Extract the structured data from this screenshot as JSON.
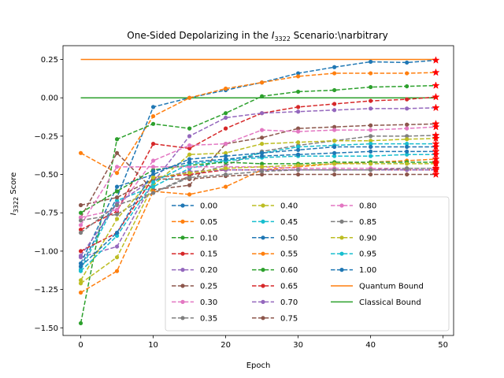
{
  "chart_data": {
    "type": "line",
    "title": "One-Sided Depolarizing in the I₃₃₂₂ Scenario:\\narbitrary",
    "title_prefix": "One-Sided Depolarizing in the ",
    "title_symbol": "I",
    "title_subscript": "3322",
    "title_suffix": " Scenario:\\narbitrary",
    "xlabel": "Epoch",
    "ylabel": "I₃₃₂₂ Score",
    "ylabel_symbol": "I",
    "ylabel_subscript": "3322",
    "ylabel_suffix": " Score",
    "xlim": [
      -2.45,
      51.45
    ],
    "ylim": [
      -1.55,
      0.34
    ],
    "xticks": [
      0,
      10,
      20,
      30,
      40,
      50
    ],
    "xtick_labels": [
      "0",
      "10",
      "20",
      "30",
      "40",
      "50"
    ],
    "yticks": [
      -1.5,
      -1.25,
      -1.0,
      -0.75,
      -0.5,
      -0.25,
      0.0,
      0.25
    ],
    "ytick_labels": [
      "−1.50",
      "−1.25",
      "−1.00",
      "−0.75",
      "−0.50",
      "−0.25",
      "0.00",
      "0.25"
    ],
    "grid": false,
    "legend_position": "lower-right",
    "legend_columns": 3,
    "final_marker": "star",
    "x": [
      0,
      5,
      10,
      15,
      20,
      25,
      30,
      35,
      40,
      45,
      49
    ],
    "series": [
      {
        "name": "0.00",
        "color": "#1f77b4",
        "values": [
          -1.1,
          -0.65,
          -0.06,
          0.0,
          0.05,
          0.1,
          0.16,
          0.2,
          0.235,
          0.23,
          0.245
        ]
      },
      {
        "name": "0.05",
        "color": "#ff7f0e",
        "values": [
          -0.36,
          -0.49,
          -0.12,
          0.0,
          0.06,
          0.1,
          0.14,
          0.16,
          0.16,
          0.16,
          0.165
        ]
      },
      {
        "name": "0.10",
        "color": "#2ca02c",
        "values": [
          -1.47,
          -0.27,
          -0.17,
          -0.2,
          -0.1,
          0.01,
          0.04,
          0.05,
          0.07,
          0.075,
          0.08
        ]
      },
      {
        "name": "0.15",
        "color": "#d62728",
        "values": [
          -0.86,
          -0.74,
          -0.3,
          -0.33,
          -0.2,
          -0.1,
          -0.06,
          -0.04,
          -0.02,
          -0.01,
          0.005
        ]
      },
      {
        "name": "0.20",
        "color": "#9467bd",
        "values": [
          -1.04,
          -0.97,
          -0.55,
          -0.25,
          -0.13,
          -0.1,
          -0.09,
          -0.08,
          -0.07,
          -0.07,
          -0.065
        ]
      },
      {
        "name": "0.25",
        "color": "#8c564b",
        "values": [
          -0.78,
          -0.36,
          -0.6,
          -0.57,
          -0.3,
          -0.26,
          -0.2,
          -0.19,
          -0.18,
          -0.175,
          -0.17
        ]
      },
      {
        "name": "0.30",
        "color": "#e377c2",
        "values": [
          -0.78,
          -0.73,
          -0.41,
          -0.31,
          -0.3,
          -0.21,
          -0.22,
          -0.21,
          -0.21,
          -0.2,
          -0.19
        ]
      },
      {
        "name": "0.35",
        "color": "#7f7f7f",
        "values": [
          -0.8,
          -0.76,
          -0.62,
          -0.51,
          -0.44,
          -0.35,
          -0.31,
          -0.28,
          -0.25,
          -0.25,
          -0.245
        ]
      },
      {
        "name": "0.40",
        "color": "#bcbd22",
        "values": [
          -1.21,
          -1.04,
          -0.57,
          -0.37,
          -0.36,
          -0.3,
          -0.29,
          -0.28,
          -0.28,
          -0.27,
          -0.265
        ]
      },
      {
        "name": "0.45",
        "color": "#17becf",
        "values": [
          -1.12,
          -0.67,
          -0.58,
          -0.46,
          -0.41,
          -0.36,
          -0.32,
          -0.31,
          -0.3,
          -0.3,
          -0.3
        ]
      },
      {
        "name": "0.50",
        "color": "#1f77b4",
        "values": [
          -1.08,
          -0.58,
          -0.5,
          -0.4,
          -0.38,
          -0.36,
          -0.34,
          -0.32,
          -0.32,
          -0.32,
          -0.32
        ]
      },
      {
        "name": "0.55",
        "color": "#ff7f0e",
        "values": [
          -1.27,
          -1.13,
          -0.61,
          -0.63,
          -0.58,
          -0.47,
          -0.45,
          -0.43,
          -0.42,
          -0.41,
          -0.4
        ]
      },
      {
        "name": "0.60",
        "color": "#2ca02c",
        "values": [
          -0.75,
          -0.61,
          -0.47,
          -0.44,
          -0.42,
          -0.43,
          -0.43,
          -0.42,
          -0.42,
          -0.42,
          -0.42
        ]
      },
      {
        "name": "0.65",
        "color": "#d62728",
        "values": [
          -1.0,
          -0.88,
          -0.52,
          -0.5,
          -0.47,
          -0.47,
          -0.47,
          -0.47,
          -0.47,
          -0.47,
          -0.47
        ]
      },
      {
        "name": "0.70",
        "color": "#9467bd",
        "values": [
          -1.03,
          -0.69,
          -0.53,
          -0.48,
          -0.47,
          -0.47,
          -0.47,
          -0.47,
          -0.47,
          -0.47,
          -0.47
        ]
      },
      {
        "name": "0.75",
        "color": "#8c564b",
        "values": [
          -0.7,
          -0.65,
          -0.53,
          -0.53,
          -0.51,
          -0.5,
          -0.5,
          -0.5,
          -0.5,
          -0.5,
          -0.5
        ]
      },
      {
        "name": "0.80",
        "color": "#e377c2",
        "values": [
          -0.83,
          -0.45,
          -0.45,
          -0.45,
          -0.45,
          -0.45,
          -0.46,
          -0.46,
          -0.46,
          -0.46,
          -0.46
        ]
      },
      {
        "name": "0.85",
        "color": "#7f7f7f",
        "values": [
          -0.88,
          -0.7,
          -0.62,
          -0.52,
          -0.5,
          -0.48,
          -0.47,
          -0.47,
          -0.47,
          -0.46,
          -0.46
        ]
      },
      {
        "name": "0.90",
        "color": "#bcbd22",
        "values": [
          -1.19,
          -0.79,
          -0.52,
          -0.49,
          -0.46,
          -0.45,
          -0.44,
          -0.43,
          -0.43,
          -0.43,
          -0.43
        ]
      },
      {
        "name": "0.95",
        "color": "#17becf",
        "values": [
          -1.13,
          -0.9,
          -0.55,
          -0.43,
          -0.41,
          -0.39,
          -0.38,
          -0.38,
          -0.38,
          -0.37,
          -0.37
        ]
      },
      {
        "name": "1.00",
        "color": "#1f77b4",
        "values": [
          -1.1,
          -0.88,
          -0.48,
          -0.42,
          -0.4,
          -0.38,
          -0.37,
          -0.36,
          -0.35,
          -0.35,
          -0.35
        ]
      }
    ],
    "bounds": [
      {
        "name": "Quantum Bound",
        "color": "#ff7f0e",
        "value": 0.25,
        "x_range": [
          0,
          49
        ]
      },
      {
        "name": "Classical Bound",
        "color": "#2ca02c",
        "value": 0.0,
        "x_range": [
          0,
          49
        ]
      }
    ]
  }
}
